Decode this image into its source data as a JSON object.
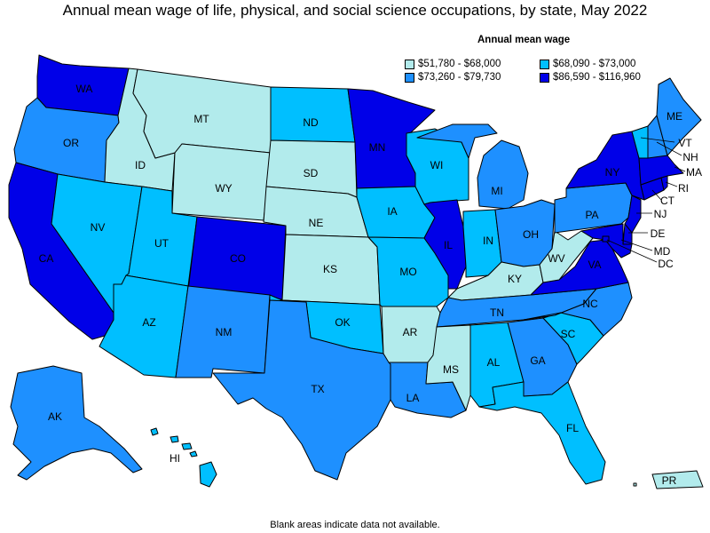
{
  "title": "Annual mean wage of life, physical, and social science occupations, by state, May 2022",
  "legend": {
    "title": "Annual mean wage",
    "items": [
      {
        "label": "$51,780 - $68,000",
        "color": "#b2ebec"
      },
      {
        "label": "$68,090 - $73,000",
        "color": "#00bfff"
      },
      {
        "label": "$73,260 - $79,730",
        "color": "#1e90ff"
      },
      {
        "label": "$86,590 - $116,960",
        "color": "#0000e8"
      }
    ]
  },
  "footnote": "Blank areas indicate data not available.",
  "states": [
    {
      "abbr": "WA",
      "bin": 3
    },
    {
      "abbr": "OR",
      "bin": 2
    },
    {
      "abbr": "CA",
      "bin": 3
    },
    {
      "abbr": "ID",
      "bin": 0
    },
    {
      "abbr": "NV",
      "bin": 1
    },
    {
      "abbr": "MT",
      "bin": 0
    },
    {
      "abbr": "WY",
      "bin": 0
    },
    {
      "abbr": "UT",
      "bin": 1
    },
    {
      "abbr": "AZ",
      "bin": 1
    },
    {
      "abbr": "CO",
      "bin": 3
    },
    {
      "abbr": "NM",
      "bin": 2
    },
    {
      "abbr": "ND",
      "bin": 1
    },
    {
      "abbr": "SD",
      "bin": 0
    },
    {
      "abbr": "NE",
      "bin": 0
    },
    {
      "abbr": "KS",
      "bin": 0
    },
    {
      "abbr": "OK",
      "bin": 1
    },
    {
      "abbr": "TX",
      "bin": 2
    },
    {
      "abbr": "MN",
      "bin": 3
    },
    {
      "abbr": "IA",
      "bin": 1
    },
    {
      "abbr": "MO",
      "bin": 1
    },
    {
      "abbr": "AR",
      "bin": 0
    },
    {
      "abbr": "LA",
      "bin": 2
    },
    {
      "abbr": "WI",
      "bin": 1
    },
    {
      "abbr": "IL",
      "bin": 3
    },
    {
      "abbr": "MI",
      "bin": 2
    },
    {
      "abbr": "IN",
      "bin": 1
    },
    {
      "abbr": "OH",
      "bin": 2
    },
    {
      "abbr": "KY",
      "bin": 0
    },
    {
      "abbr": "TN",
      "bin": 2
    },
    {
      "abbr": "MS",
      "bin": 0
    },
    {
      "abbr": "AL",
      "bin": 1
    },
    {
      "abbr": "GA",
      "bin": 2
    },
    {
      "abbr": "FL",
      "bin": 1
    },
    {
      "abbr": "SC",
      "bin": 1
    },
    {
      "abbr": "NC",
      "bin": 2
    },
    {
      "abbr": "VA",
      "bin": 3
    },
    {
      "abbr": "WV",
      "bin": 0
    },
    {
      "abbr": "PA",
      "bin": 2
    },
    {
      "abbr": "NY",
      "bin": 3
    },
    {
      "abbr": "VT",
      "bin": 1
    },
    {
      "abbr": "NH",
      "bin": 2
    },
    {
      "abbr": "ME",
      "bin": 2
    },
    {
      "abbr": "MA",
      "bin": 3
    },
    {
      "abbr": "RI",
      "bin": 3
    },
    {
      "abbr": "CT",
      "bin": 3
    },
    {
      "abbr": "NJ",
      "bin": 3
    },
    {
      "abbr": "DE",
      "bin": 3
    },
    {
      "abbr": "MD",
      "bin": 3
    },
    {
      "abbr": "DC",
      "bin": 3
    },
    {
      "abbr": "AK",
      "bin": 2
    },
    {
      "abbr": "HI",
      "bin": 1
    },
    {
      "abbr": "PR",
      "bin": 0
    }
  ]
}
